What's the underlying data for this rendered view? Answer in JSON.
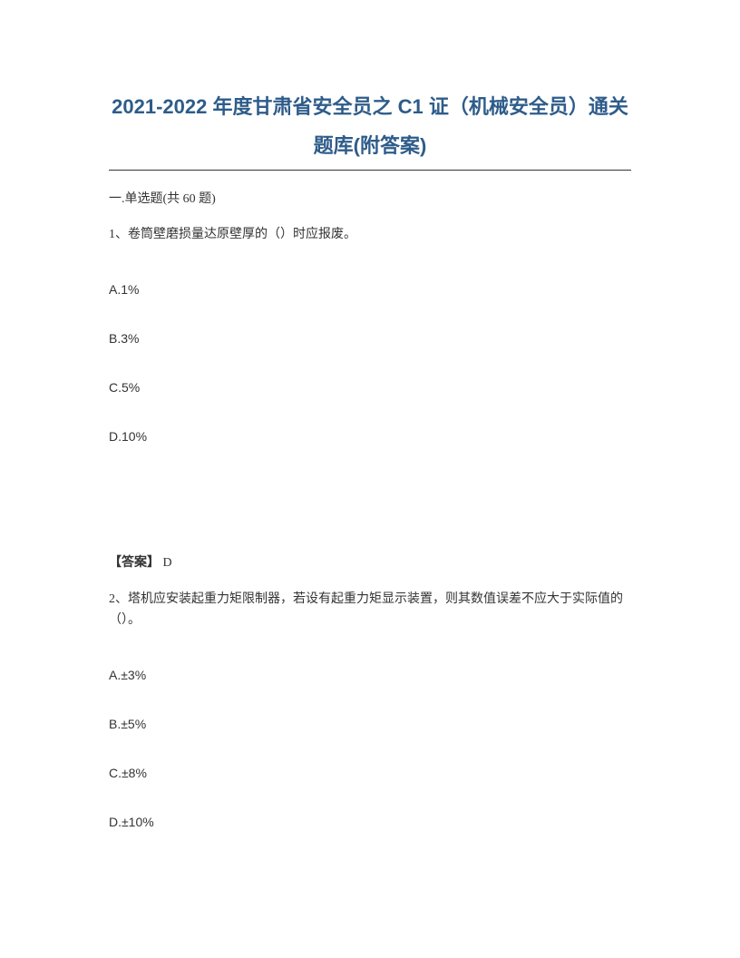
{
  "title_line1": "2021-2022 年度甘肃省安全员之 C1 证（机械安全员）通关",
  "title_line2": "题库(附答案)",
  "section_header": "一.单选题(共 60 题)",
  "q1": {
    "text": "1、卷筒壁磨损量达原壁厚的（）时应报废。",
    "options": {
      "a": "A.1%",
      "b": "B.3%",
      "c": "C.5%",
      "d": "D.10%"
    },
    "answer_label": "【答案】",
    "answer_value": " D"
  },
  "q2": {
    "text": "2、塔机应安装起重力矩限制器，若设有起重力矩显示装置，则其数值误差不应大于实际值的（）。",
    "options": {
      "a": "A.±3%",
      "b": "B.±5%",
      "c": "C.±8%",
      "d": "D.±10%"
    }
  }
}
